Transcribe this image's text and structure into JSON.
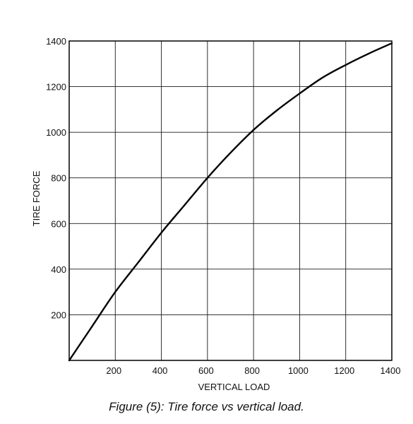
{
  "chart_data": {
    "type": "line",
    "title": "",
    "xlabel": "VERTICAL LOAD",
    "ylabel": "TIRE FORCE",
    "xlim": [
      0,
      1400
    ],
    "ylim": [
      0,
      1400
    ],
    "x_ticks": [
      200,
      400,
      600,
      800,
      1000,
      1200,
      1400
    ],
    "y_ticks": [
      200,
      400,
      600,
      800,
      1000,
      1200,
      1400
    ],
    "grid": true,
    "legend": "none",
    "series": [
      {
        "x": [
          0,
          100,
          200,
          300,
          400,
          500,
          600,
          700,
          800,
          900,
          1000,
          1100,
          1200,
          1300,
          1400
        ],
        "y": [
          0,
          150,
          300,
          430,
          560,
          680,
          800,
          910,
          1010,
          1095,
          1170,
          1240,
          1295,
          1345,
          1390
        ]
      }
    ],
    "line_color": "#000000"
  },
  "caption": "Figure (5): Tire force vs vertical load."
}
